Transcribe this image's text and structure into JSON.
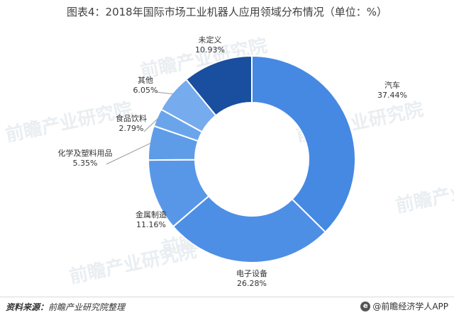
{
  "chart_data": {
    "type": "pie",
    "title": "图表4：2018年国际市场工业机器人应用领域分布情况（单位：%）",
    "donut": true,
    "unit": "%",
    "categories": [
      "汽车",
      "电子设备",
      "金属制造",
      "化学及塑料用品",
      "食品饮料",
      "其他",
      "未定义"
    ],
    "values": [
      37.44,
      26.28,
      11.16,
      5.35,
      2.79,
      6.05,
      10.93
    ],
    "value_labels": [
      "37.44%",
      "26.28%",
      "11.16%",
      "5.35%",
      "2.79%",
      "6.05%",
      "10.93%"
    ],
    "colors": [
      "#4589e3",
      "#4e8fe6",
      "#5897e8",
      "#5f9ce8",
      "#6aa5ec",
      "#76abee",
      "#1a4e9e"
    ]
  },
  "footer": {
    "source_label": "资料来源：",
    "source_text": "前瞻产业研究院整理",
    "credit": "@前瞻经济学人APP"
  },
  "watermark": {
    "text": "前瞻产业研究院"
  }
}
